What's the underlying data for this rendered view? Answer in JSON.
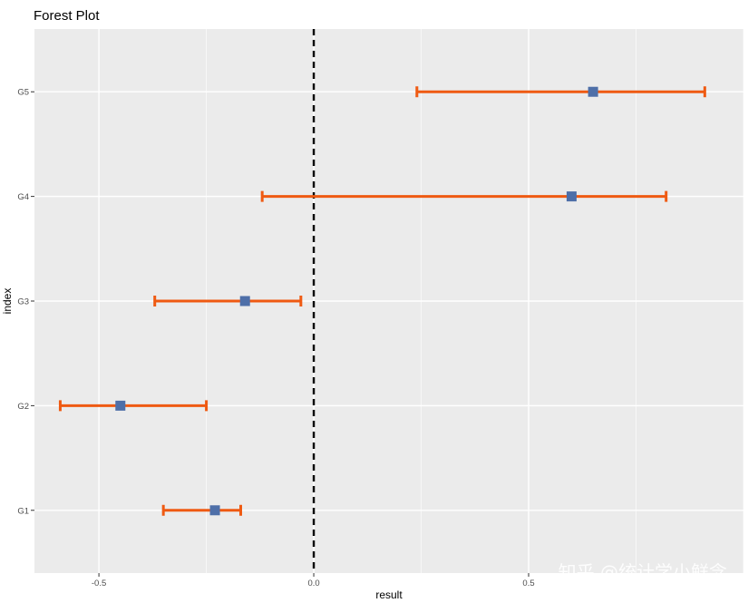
{
  "chart_data": {
    "type": "forest",
    "title": "Forest Plot",
    "xlabel": "result",
    "ylabel": "index",
    "xlim": [
      -0.65,
      1.0
    ],
    "x_ticks": [
      -0.5,
      0.0,
      0.5
    ],
    "x_tick_labels": [
      "-0.5",
      "0.0",
      "0.5"
    ],
    "reference_line": 0.0,
    "reference_line_style": "dashed",
    "grid": true,
    "panel_background": "#ebebeb",
    "point_color": "#4e6fa8",
    "errorbar_color": "#ef5a12",
    "categories": [
      "G1",
      "G2",
      "G3",
      "G4",
      "G5"
    ],
    "estimate": [
      -0.23,
      -0.45,
      -0.16,
      0.6,
      0.65
    ],
    "lower": [
      -0.35,
      -0.59,
      -0.37,
      -0.12,
      0.24
    ],
    "upper": [
      -0.17,
      -0.25,
      -0.03,
      0.82,
      0.91
    ]
  },
  "watermark": {
    "text": "知乎 @统计学小鲜念"
  }
}
